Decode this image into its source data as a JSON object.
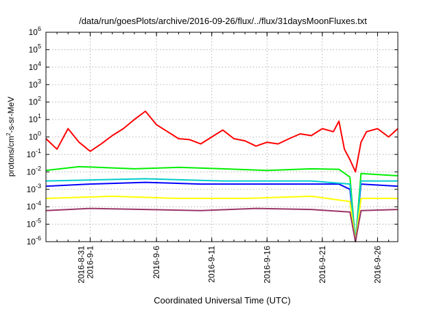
{
  "chart_data": {
    "type": "line",
    "title": "/data/run/goesPlots/archive/2016-09-26/flux/../flux/31daysMoonFluxes.txt",
    "xlabel": "Coordinated Universal Time (UTC)",
    "ylabel_parts": [
      "protons/cm",
      "2",
      "-s-sr-MeV"
    ],
    "y_scale": "log",
    "ylim": [
      1e-06,
      1000000.0
    ],
    "xlim": [
      "2016-08-27",
      "2016-09-27 20:00"
    ],
    "y_ticks": [
      {
        "base": "10",
        "exp": "-6",
        "value": 1e-06
      },
      {
        "base": "10",
        "exp": "-5",
        "value": 1e-05
      },
      {
        "base": "10",
        "exp": "-4",
        "value": 0.0001
      },
      {
        "base": "10",
        "exp": "-3",
        "value": 0.001
      },
      {
        "base": "10",
        "exp": "-2",
        "value": 0.01
      },
      {
        "base": "10",
        "exp": "-1",
        "value": 0.1
      },
      {
        "base": "10",
        "exp": "0",
        "value": 1
      },
      {
        "base": "10",
        "exp": "1",
        "value": 10
      },
      {
        "base": "10",
        "exp": "2",
        "value": 100
      },
      {
        "base": "10",
        "exp": "3",
        "value": 1000
      },
      {
        "base": "10",
        "exp": "4",
        "value": 10000
      },
      {
        "base": "10",
        "exp": "5",
        "value": 100000
      },
      {
        "base": "10",
        "exp": "6",
        "value": 1000000
      }
    ],
    "x_tick_dates": [
      "2016-08-31",
      "2016-09-06",
      "2016-09-11",
      "2016-09-16",
      "2016-09-21",
      "2016-09-26"
    ],
    "x_ticks": [
      {
        "date": "2016-08-31",
        "lines": [
          "2016-8-31",
          "2016-9-1"
        ]
      },
      {
        "date": "2016-09-06",
        "lines": [
          "2016-9-6"
        ]
      },
      {
        "date": "2016-09-11",
        "lines": [
          "2016-9-11"
        ]
      },
      {
        "date": "2016-09-16",
        "lines": [
          "2016-9-16"
        ]
      },
      {
        "date": "2016-09-21",
        "lines": [
          "2016-9-21"
        ]
      },
      {
        "date": "2016-09-26",
        "lines": [
          "2016-9-26"
        ]
      }
    ],
    "grid": true,
    "legend": "none",
    "series": [
      {
        "color": "#ff0000",
        "points": [
          [
            "2016-08-27",
            0.8
          ],
          [
            "2016-08-28",
            0.2
          ],
          [
            "2016-08-29",
            3.0
          ],
          [
            "2016-08-30",
            0.5
          ],
          [
            "2016-08-31",
            0.15
          ],
          [
            "2016-09-01",
            0.4
          ],
          [
            "2016-09-02",
            1.2
          ],
          [
            "2016-09-03",
            3.0
          ],
          [
            "2016-09-04",
            10
          ],
          [
            "2016-09-05",
            30
          ],
          [
            "2016-09-06",
            5
          ],
          [
            "2016-09-07",
            2.0
          ],
          [
            "2016-09-08",
            0.8
          ],
          [
            "2016-09-09",
            0.7
          ],
          [
            "2016-09-10",
            0.4
          ],
          [
            "2016-09-11",
            1.0
          ],
          [
            "2016-09-12",
            2.5
          ],
          [
            "2016-09-13",
            0.8
          ],
          [
            "2016-09-14",
            0.6
          ],
          [
            "2016-09-15",
            0.3
          ],
          [
            "2016-09-16",
            0.5
          ],
          [
            "2016-09-17",
            0.4
          ],
          [
            "2016-09-18",
            0.8
          ],
          [
            "2016-09-19",
            1.5
          ],
          [
            "2016-09-20",
            1.2
          ],
          [
            "2016-09-21",
            3.0
          ],
          [
            "2016-09-22",
            2.0
          ],
          [
            "2016-09-22 12:00",
            8.0
          ],
          [
            "2016-09-23",
            0.2
          ],
          [
            "2016-09-23 12:00",
            0.05
          ],
          [
            "2016-09-24",
            0.01
          ],
          [
            "2016-09-24 12:00",
            0.5
          ],
          [
            "2016-09-25",
            2.0
          ],
          [
            "2016-09-26",
            3.0
          ],
          [
            "2016-09-27",
            1.0
          ],
          [
            "2016-09-27 20:00",
            3.0
          ]
        ]
      },
      {
        "color": "#00ee00",
        "points": [
          [
            "2016-08-27",
            0.012
          ],
          [
            "2016-08-30",
            0.02
          ],
          [
            "2016-09-04",
            0.015
          ],
          [
            "2016-09-08",
            0.018
          ],
          [
            "2016-09-12",
            0.015
          ],
          [
            "2016-09-16",
            0.012
          ],
          [
            "2016-09-20",
            0.015
          ],
          [
            "2016-09-22 12:00",
            0.014
          ],
          [
            "2016-09-23 12:00",
            0.005
          ],
          [
            "2016-09-24",
            1e-06
          ],
          [
            "2016-09-24 12:00",
            0.008
          ],
          [
            "2016-09-26",
            0.007
          ],
          [
            "2016-09-27 20:00",
            0.006
          ]
        ]
      },
      {
        "color": "#0000ff",
        "points": [
          [
            "2016-08-27",
            0.0015
          ],
          [
            "2016-08-31",
            0.002
          ],
          [
            "2016-09-05",
            0.0025
          ],
          [
            "2016-09-10",
            0.002
          ],
          [
            "2016-09-15",
            0.002
          ],
          [
            "2016-09-20",
            0.002
          ],
          [
            "2016-09-22 12:00",
            0.002
          ],
          [
            "2016-09-23 12:00",
            0.001
          ],
          [
            "2016-09-24",
            1e-06
          ],
          [
            "2016-09-24 12:00",
            0.002
          ],
          [
            "2016-09-27 20:00",
            0.0015
          ]
        ]
      },
      {
        "color": "#00cccc",
        "points": [
          [
            "2016-08-27",
            0.003
          ],
          [
            "2016-09-05",
            0.004
          ],
          [
            "2016-09-12",
            0.003
          ],
          [
            "2016-09-20",
            0.003
          ],
          [
            "2016-09-23 12:00",
            0.002
          ],
          [
            "2016-09-24",
            1e-06
          ],
          [
            "2016-09-24 12:00",
            0.003
          ],
          [
            "2016-09-27 20:00",
            0.003
          ]
        ]
      },
      {
        "color": "#ffff00",
        "points": [
          [
            "2016-08-27",
            0.0003
          ],
          [
            "2016-09-02",
            0.0004
          ],
          [
            "2016-09-08",
            0.0003
          ],
          [
            "2016-09-14",
            0.0003
          ],
          [
            "2016-09-20",
            0.0004
          ],
          [
            "2016-09-23 12:00",
            0.0002
          ],
          [
            "2016-09-24",
            1e-06
          ],
          [
            "2016-09-24 12:00",
            0.0003
          ],
          [
            "2016-09-27 20:00",
            0.0003
          ]
        ]
      },
      {
        "color": "#993366",
        "points": [
          [
            "2016-08-27",
            6e-05
          ],
          [
            "2016-08-31",
            8e-05
          ],
          [
            "2016-09-05",
            7e-05
          ],
          [
            "2016-09-10",
            6e-05
          ],
          [
            "2016-09-15",
            8e-05
          ],
          [
            "2016-09-20",
            7e-05
          ],
          [
            "2016-09-23 12:00",
            5e-05
          ],
          [
            "2016-09-24",
            1e-06
          ],
          [
            "2016-09-24 12:00",
            6e-05
          ],
          [
            "2016-09-27 20:00",
            7e-05
          ]
        ]
      }
    ]
  }
}
